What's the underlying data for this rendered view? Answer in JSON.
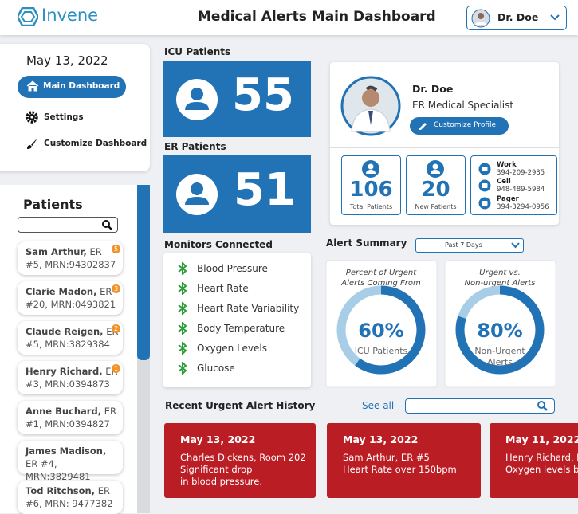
{
  "header": {
    "logo": "Invene",
    "title": "Medical Alerts Main Dashboard",
    "user": "Dr. Doe"
  },
  "nav": {
    "date": "May 13, 2022",
    "items": [
      "Main Dashboard",
      "Settings",
      "Customize Dashboard"
    ]
  },
  "patients": {
    "title": "Patients",
    "list": [
      {
        "name": "Sam Arthur,",
        "info": "ER #5, MRN:94302837",
        "alerts": 5
      },
      {
        "name": "Clarie Madon,",
        "info": "ER #20, MRN:0493821",
        "alerts": 3
      },
      {
        "name": "Claude Reigen,",
        "info": "ER #5, MRN:3829384",
        "alerts": 2
      },
      {
        "name": "Henry Richard,",
        "info": "ER #3, MRN:0394873",
        "alerts": 1
      },
      {
        "name": "Anne Buchard,",
        "info": "ER #1, MRN:0394827",
        "alerts": null
      },
      {
        "name": "James Madison,",
        "info": "ER #4, MRN:3829481",
        "alerts": null
      },
      {
        "name": "Tod Ritchson,",
        "info": "ER #6, MRN: 9477382",
        "alerts": null
      }
    ]
  },
  "icu": {
    "label": "ICU Patients",
    "count": 55
  },
  "er": {
    "label": "ER Patients",
    "count": 51
  },
  "monitors": {
    "label": "Monitors Connected",
    "items": [
      "Blood Pressure",
      "Heart Rate",
      "Heart Rate Variability",
      "Body Temperature",
      "Oxygen Levels",
      "Glucose"
    ]
  },
  "profile": {
    "name": "Dr. Doe",
    "role": "ER Medical Specialist",
    "button": "Customize Profile",
    "stats": [
      {
        "value": 106,
        "label": "Total Patients"
      },
      {
        "value": 20,
        "label": "New Patients"
      }
    ],
    "contacts": [
      {
        "label": "Work",
        "value": "394-209-2935"
      },
      {
        "label": "Cell",
        "value": "948-489-5984"
      },
      {
        "label": "Pager",
        "value": "394-3294-0956"
      }
    ]
  },
  "alert_summary": {
    "label": "Alert Summary",
    "range": "Past 7 Days",
    "charts": [
      {
        "title_lines": [
          "Percent of Urgent",
          "Alerts Coming From"
        ],
        "percent": {
          "value": 60,
          "label": "60%"
        },
        "caption_lines": [
          "ICU Patients"
        ]
      },
      {
        "title_lines": [
          "Urgent vs.",
          "Non-urgent Alerts"
        ],
        "percent": {
          "value": 80,
          "label": "80%"
        },
        "caption_lines": [
          "Non-Urgent",
          "Alerts"
        ]
      }
    ]
  },
  "history": {
    "label": "Recent Urgent Alert History",
    "link": "See all",
    "alerts": [
      {
        "date": "May 13, 2022",
        "lines": [
          "Charles Dickens, Room 202",
          "Significant drop",
          "in blood pressure."
        ]
      },
      {
        "date": "May 13, 2022",
        "lines": [
          "Sam Arthur, ER #5",
          "Heart Rate over 150bpm"
        ]
      },
      {
        "date": "May 11, 2022",
        "lines": [
          "Henry Richard, ER",
          "Oxygen levels bel"
        ]
      }
    ]
  }
}
